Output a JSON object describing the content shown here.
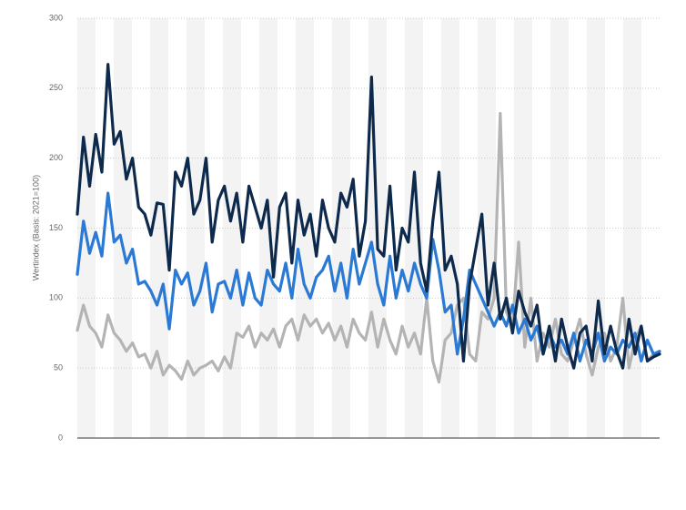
{
  "chart_data": {
    "type": "line",
    "y_label": "Wertindex (Basis: 2021=100)",
    "ylim": [
      0,
      300
    ],
    "yticks": [
      0,
      50,
      100,
      150,
      200,
      250,
      300
    ],
    "grid": true,
    "series": [
      {
        "color": "#b4b4b4",
        "values": [
          77,
          95,
          80,
          75,
          65,
          88,
          75,
          70,
          62,
          68,
          58,
          60,
          50,
          62,
          45,
          52,
          48,
          42,
          55,
          45,
          50,
          52,
          55,
          48,
          58,
          50,
          75,
          72,
          80,
          65,
          75,
          70,
          78,
          65,
          80,
          85,
          70,
          88,
          80,
          85,
          75,
          82,
          70,
          80,
          65,
          85,
          75,
          70,
          90,
          65,
          85,
          70,
          60,
          80,
          65,
          75,
          60,
          100,
          55,
          40,
          70,
          75,
          95,
          100,
          60,
          55,
          90,
          85,
          100,
          232,
          90,
          80,
          140,
          65,
          100,
          55,
          75,
          65,
          85,
          60,
          55,
          70,
          85,
          60,
          45,
          65,
          75,
          55,
          65,
          100,
          50,
          70,
          80,
          55,
          60,
          62
        ]
      },
      {
        "color": "#2a7ad5",
        "values": [
          117,
          155,
          132,
          147,
          130,
          175,
          140,
          145,
          125,
          135,
          110,
          112,
          105,
          95,
          110,
          78,
          120,
          110,
          118,
          95,
          105,
          125,
          90,
          110,
          112,
          100,
          120,
          95,
          118,
          100,
          95,
          120,
          110,
          105,
          125,
          100,
          135,
          110,
          100,
          115,
          120,
          130,
          105,
          125,
          100,
          135,
          110,
          125,
          140,
          110,
          95,
          130,
          100,
          120,
          105,
          125,
          110,
          100,
          142,
          120,
          90,
          95,
          60,
          85,
          120,
          110,
          100,
          90,
          80,
          90,
          80,
          95,
          75,
          85,
          70,
          80,
          60,
          75,
          65,
          70,
          60,
          75,
          55,
          70,
          60,
          75,
          55,
          65,
          60,
          70,
          65,
          75,
          55,
          70,
          60,
          62
        ]
      },
      {
        "color": "#0d2a4d",
        "values": [
          160,
          215,
          180,
          217,
          190,
          267,
          210,
          219,
          185,
          200,
          165,
          160,
          145,
          168,
          167,
          120,
          190,
          180,
          200,
          160,
          170,
          200,
          140,
          170,
          180,
          155,
          175,
          140,
          180,
          165,
          150,
          170,
          115,
          165,
          175,
          125,
          170,
          145,
          160,
          130,
          170,
          150,
          140,
          175,
          165,
          185,
          130,
          155,
          258,
          135,
          130,
          180,
          120,
          150,
          140,
          190,
          125,
          105,
          155,
          190,
          120,
          130,
          110,
          55,
          110,
          135,
          160,
          95,
          125,
          85,
          100,
          75,
          105,
          90,
          80,
          95,
          60,
          80,
          55,
          85,
          65,
          50,
          75,
          80,
          55,
          98,
          60,
          80,
          62,
          50,
          85,
          60,
          80,
          55,
          58,
          60
        ]
      }
    ]
  }
}
